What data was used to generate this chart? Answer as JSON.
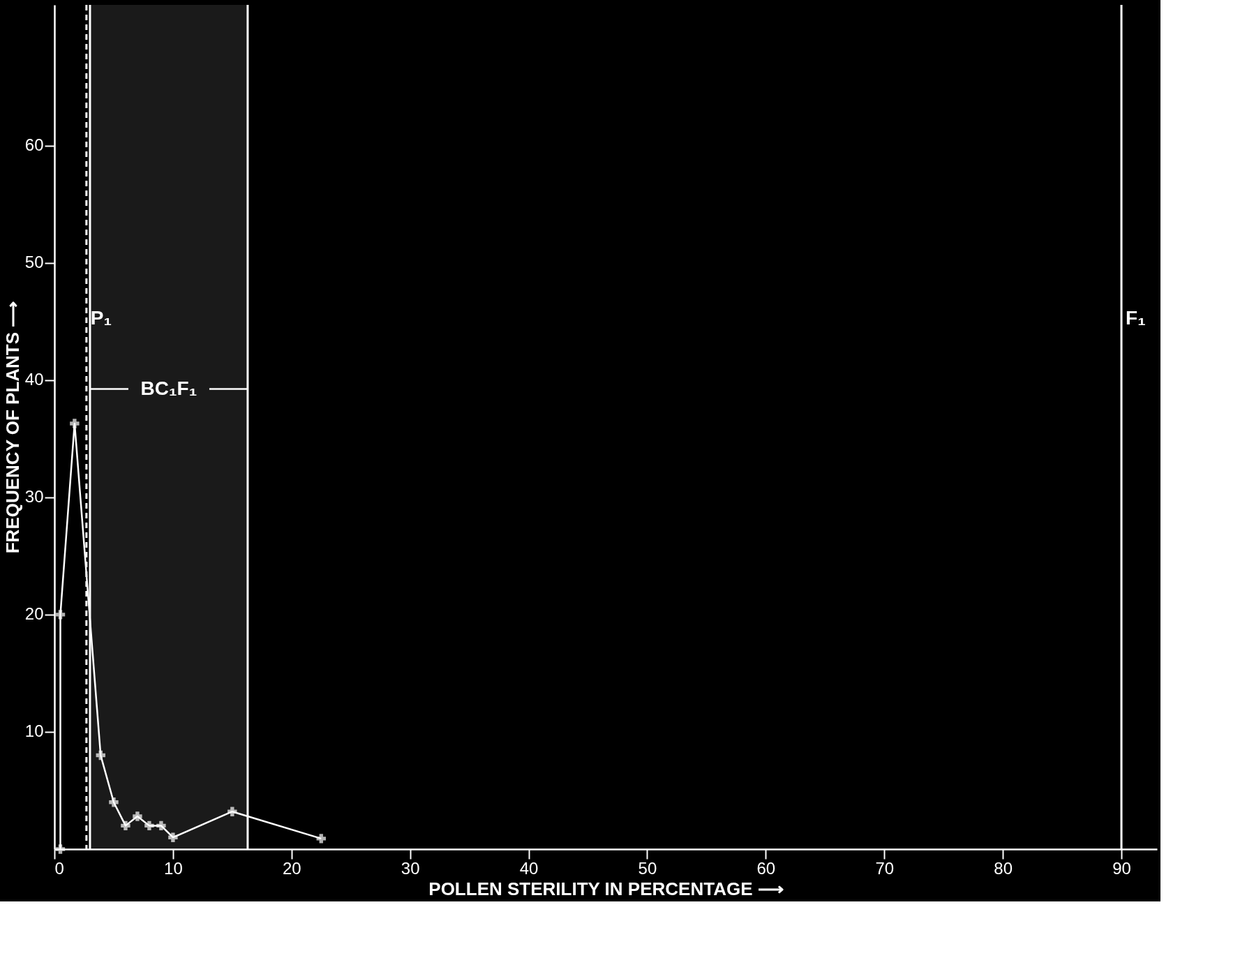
{
  "chart_data": {
    "type": "line",
    "xlabel": "POLLEN STERILITY IN PERCENTAGE ⟶",
    "ylabel": "FREQUENCY OF   PLANTS ⟶",
    "x": [
      0.5,
      0.5,
      1.7,
      3.9,
      5,
      6,
      7,
      8,
      9,
      10,
      15,
      22.5
    ],
    "series": [
      {
        "color": "#ffffff",
        "values": [
          0,
          20,
          36.3,
          8,
          4,
          2,
          2.8,
          2,
          2,
          1,
          3.2,
          0.9
        ]
      }
    ],
    "marker": "cross",
    "line_style": "solid",
    "grid": false,
    "xlim": [
      0,
      93
    ],
    "ylim": [
      0,
      72
    ],
    "xticks": [
      0,
      10,
      20,
      30,
      40,
      50,
      60,
      70,
      80,
      90
    ],
    "yticks": [
      10,
      20,
      30,
      40,
      50,
      60
    ],
    "ref_lines": [
      {
        "axis": "x",
        "value": 2.7,
        "label": "P₁",
        "line_style": "dashed",
        "color": "#ffffff"
      },
      {
        "axis": "x",
        "value": 3,
        "label": null,
        "line_style": "solid",
        "color": "#ffffff"
      },
      {
        "axis": "x",
        "value": 16.3,
        "label": null,
        "line_style": "solid",
        "color": "#ffffff"
      },
      {
        "axis": "x",
        "value": 90,
        "label": "F₁",
        "line_style": "solid",
        "color": "#ffffff"
      }
    ],
    "bands": [
      {
        "axis": "x",
        "from": 3,
        "to": 16.3,
        "label": "BC₁F₁",
        "color": "#ffffff"
      }
    ]
  }
}
